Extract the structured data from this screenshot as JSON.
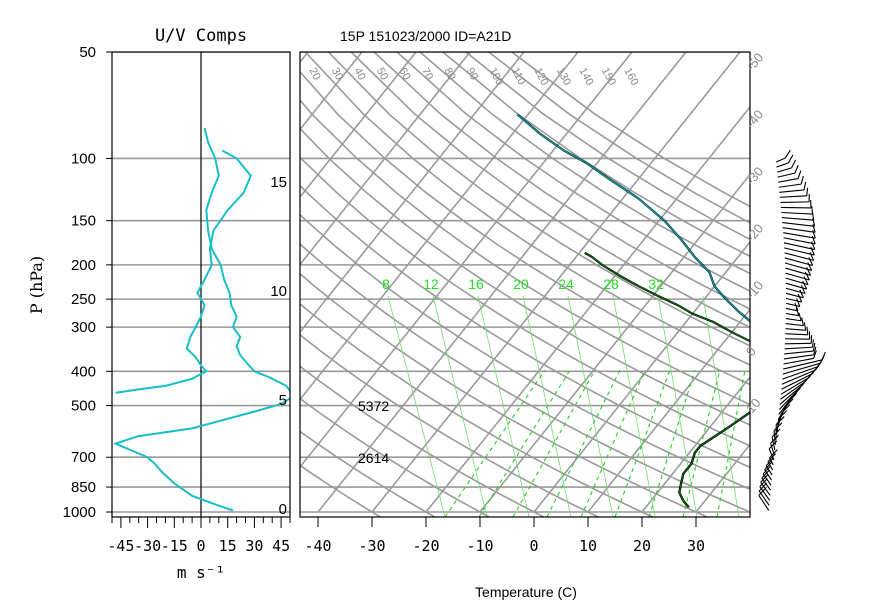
{
  "chart_data": [
    {
      "type": "line",
      "title": "U/V Comps",
      "xlabel": "m s⁻¹",
      "ylabel": "P (hPa)",
      "xlim": [
        -50,
        50
      ],
      "x_ticks": [
        -45,
        -30,
        -15,
        0,
        15,
        30,
        45
      ],
      "y_ticks": [
        50,
        100,
        150,
        200,
        250,
        300,
        400,
        500,
        700,
        850,
        1000
      ],
      "y_scale": "log",
      "ylim": [
        1000,
        50
      ],
      "series": [
        {
          "color": "#17bfc8",
          "points": [
            [
              18,
              990
            ],
            [
              10,
              960
            ],
            [
              -5,
              900
            ],
            [
              -15,
              830
            ],
            [
              -22,
              770
            ],
            [
              -26,
              730
            ],
            [
              -30,
              700
            ],
            [
              -42,
              660
            ],
            [
              -48,
              640
            ],
            [
              -35,
              610
            ],
            [
              -5,
              580
            ],
            [
              12,
              550
            ],
            [
              30,
              520
            ],
            [
              45,
              495
            ],
            [
              52,
              470
            ],
            [
              48,
              440
            ],
            [
              38,
              415
            ],
            [
              30,
              400
            ],
            [
              26,
              380
            ],
            [
              22,
              360
            ],
            [
              20,
              340
            ],
            [
              22,
              320
            ],
            [
              18,
              300
            ],
            [
              20,
              280
            ],
            [
              17,
              260
            ],
            [
              16,
              240
            ],
            [
              13,
              220
            ],
            [
              11,
              200
            ],
            [
              6,
              180
            ],
            [
              4,
              160
            ],
            [
              3,
              140
            ],
            [
              6,
              125
            ],
            [
              10,
              112
            ],
            [
              8,
              100
            ],
            [
              4,
              90
            ],
            [
              2,
              82
            ]
          ]
        },
        {
          "color": "#17bfc8",
          "points": [
            [
              -48,
              460
            ],
            [
              -35,
              450
            ],
            [
              -20,
              440
            ],
            [
              -5,
              420
            ],
            [
              3,
              400
            ],
            [
              0,
              385
            ],
            [
              -3,
              365
            ],
            [
              -8,
              345
            ],
            [
              -6,
              320
            ],
            [
              -3,
              300
            ],
            [
              0,
              280
            ],
            [
              2,
              260
            ],
            [
              -2,
              240
            ],
            [
              2,
              220
            ],
            [
              6,
              200
            ],
            [
              5,
              180
            ],
            [
              7,
              160
            ],
            [
              15,
              140
            ],
            [
              24,
              125
            ],
            [
              28,
              112
            ],
            [
              20,
              100
            ],
            [
              12,
              95
            ]
          ]
        }
      ]
    },
    {
      "type": "line",
      "title": "15P 151023/2000 ID=A21D",
      "xlabel": "Temperature (C)",
      "x_ticks": [
        -40,
        -30,
        -20,
        -10,
        0,
        10,
        20,
        30
      ],
      "xlim": [
        -43,
        40
      ],
      "y_scale": "log",
      "ylim": [
        1000,
        50
      ],
      "height_labels": [
        0,
        5,
        10,
        15
      ],
      "mixing_ratio_labels": [
        8,
        12,
        16,
        20,
        24,
        28,
        32
      ],
      "isotherm_labels": [
        -50,
        -40,
        -30,
        -20,
        -10,
        0,
        10,
        20,
        30,
        40,
        50,
        60,
        70,
        80,
        90,
        100,
        110,
        120,
        130,
        140,
        150,
        160
      ],
      "annotations": [
        "5372",
        "2614"
      ],
      "series": [
        {
          "name": "temperature",
          "color": "#000000",
          "points": [
            [
              28,
              970
            ],
            [
              26,
              930
            ],
            [
              24,
              880
            ],
            [
              23,
              830
            ],
            [
              22,
              780
            ],
            [
              22,
              730
            ],
            [
              21,
              680
            ],
            [
              21,
              650
            ],
            [
              22,
              620
            ],
            [
              23,
              590
            ],
            [
              24,
              560
            ],
            [
              25,
              530
            ],
            [
              26,
              500
            ],
            [
              28,
              460
            ],
            [
              27,
              430
            ],
            [
              26,
              410
            ],
            [
              24,
              390
            ],
            [
              22,
              370
            ],
            [
              19,
              350
            ],
            [
              15,
              330
            ],
            [
              10,
              310
            ],
            [
              5,
              290
            ],
            [
              0,
              275
            ],
            [
              -4,
              260
            ],
            [
              -9,
              245
            ],
            [
              -14,
              230
            ],
            [
              -19,
              215
            ],
            [
              -24,
              200
            ],
            [
              -27,
              190
            ],
            [
              -29,
              185
            ]
          ]
        },
        {
          "name": "dewpoint",
          "color": "#007070",
          "points": [
            [
              28,
              970
            ],
            [
              26,
              930
            ],
            [
              24,
              880
            ],
            [
              23,
              830
            ],
            [
              22,
              780
            ],
            [
              22,
              730
            ],
            [
              21,
              680
            ],
            [
              21,
              650
            ],
            [
              22,
              620
            ],
            [
              23,
              590
            ],
            [
              24,
              560
            ],
            [
              25,
              530
            ],
            [
              26,
              500
            ],
            [
              28,
              460
            ],
            [
              27,
              430
            ],
            [
              26,
              410
            ],
            [
              25,
              390
            ],
            [
              23,
              370
            ],
            [
              21,
              350
            ],
            [
              19,
              330
            ],
            [
              16,
              310
            ],
            [
              12,
              290
            ],
            [
              8,
              270
            ],
            [
              4,
              250
            ],
            [
              0,
              230
            ],
            [
              -3,
              210
            ],
            [
              -8,
              190
            ],
            [
              -13,
              170
            ],
            [
              -19,
              150
            ],
            [
              -27,
              130
            ],
            [
              -35,
              115
            ],
            [
              -42,
              103
            ],
            [
              -48,
              95
            ],
            [
              -55,
              85
            ],
            [
              -62,
              75
            ]
          ]
        }
      ]
    }
  ]
}
